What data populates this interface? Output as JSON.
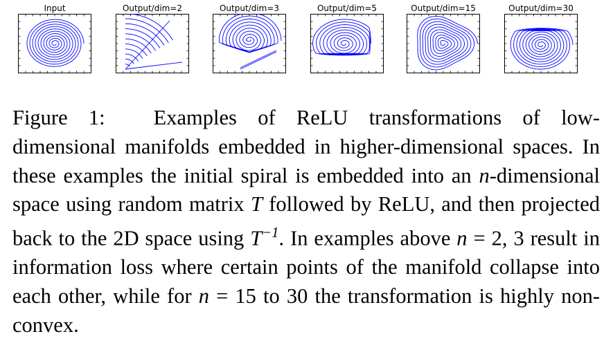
{
  "figure": {
    "panels": [
      {
        "title": "Input",
        "shape": "input"
      },
      {
        "title": "Output/dim=2",
        "shape": "dim2"
      },
      {
        "title": "Output/dim=3",
        "shape": "dim3"
      },
      {
        "title": "Output/dim=5",
        "shape": "dim5"
      },
      {
        "title": "Output/dim=15",
        "shape": "dim15"
      },
      {
        "title": "Output/dim=30",
        "shape": "dim30"
      }
    ],
    "line_color": "#0000ff"
  },
  "caption": {
    "label": "Figure 1:",
    "seg1": "Examples of ReLU transformations of low-dimensional manifolds embedded in higher-dimensional spaces. In these examples the initial spiral is embedded into an ",
    "n1": "n",
    "seg2": "-dimensional space using random matrix ",
    "T1": "T",
    "seg3": " followed by ReLU, and then projected back to the 2D space using ",
    "T2": "T",
    "T2_sup": "−1",
    "seg4": ". In examples above ",
    "n2": "n",
    "seg5": " = 2, 3 result in information loss where certain points of the manifold collapse into each other, while for ",
    "n3": "n",
    "seg6": " = 15 to 30 the transformation is highly non-convex."
  }
}
